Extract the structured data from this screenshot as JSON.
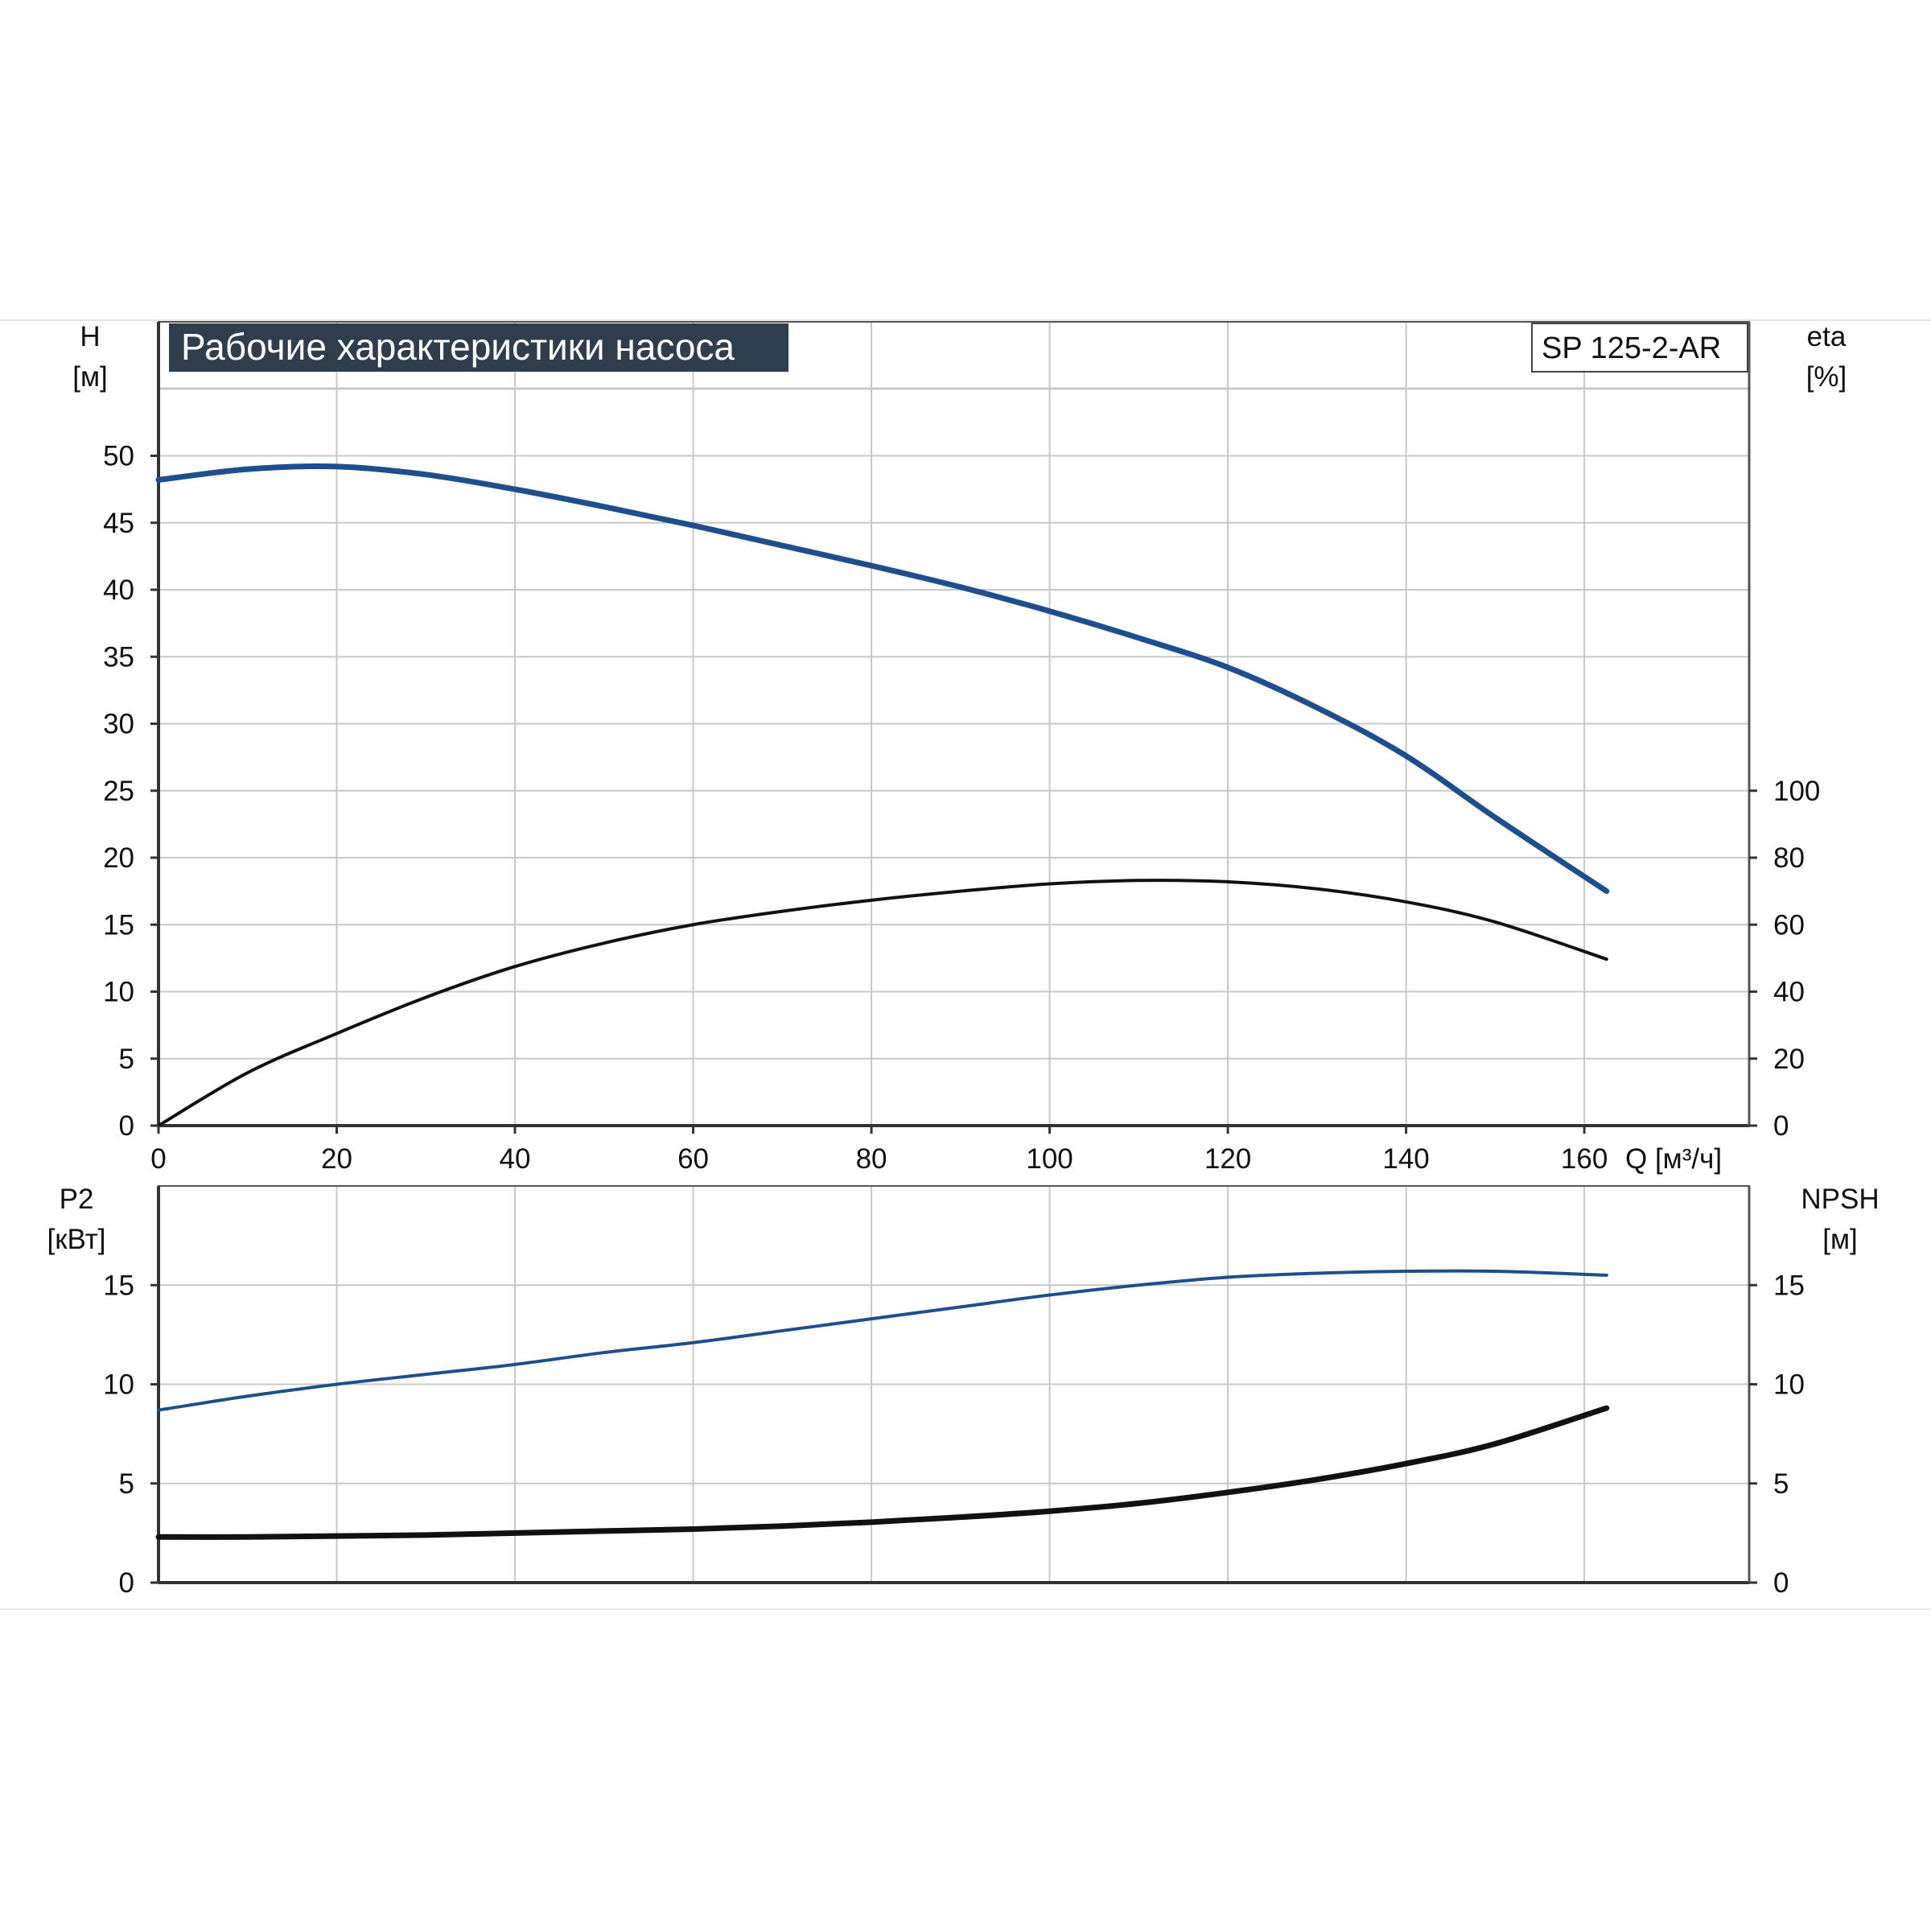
{
  "colors": {
    "blue": "#1f4e8c",
    "black": "#111111",
    "grid": "#c8c8c8",
    "title_bg": "#2f3e4e"
  },
  "chart_data": [
    {
      "type": "line",
      "title": "Рабочие характеристики насоса",
      "model_label": "SP 125-2-AR",
      "xlabel": "Q [м³/ч]",
      "ylabel_left": "H\n[м]",
      "ylabel_right": "eta\n[%]",
      "x_ticks": [
        "0",
        "20",
        "40",
        "60",
        "80",
        "100",
        "120",
        "140",
        "160"
      ],
      "y_left_ticks": [
        "0",
        "5",
        "10",
        "15",
        "20",
        "25",
        "30",
        "35",
        "40",
        "45",
        "50"
      ],
      "y_right_ticks": [
        "0",
        "20",
        "40",
        "60",
        "80",
        "100"
      ],
      "xlim": [
        0,
        178.5
      ],
      "ylim_left": [
        0,
        60
      ],
      "ylim_right": [
        0,
        240
      ],
      "grid": true,
      "series": [
        {
          "axis": "left",
          "color": "blue",
          "x": [
            0,
            10,
            20,
            30,
            40,
            50,
            60,
            70,
            80,
            90,
            100,
            110,
            120,
            130,
            140,
            150,
            162.5
          ],
          "y": [
            48.2,
            49.0,
            49.2,
            48.6,
            47.5,
            46.2,
            44.8,
            43.3,
            41.8,
            40.2,
            38.4,
            36.4,
            34.2,
            31.2,
            27.6,
            23.0,
            17.5
          ]
        },
        {
          "axis": "right",
          "color": "black",
          "x": [
            0,
            10,
            20,
            30,
            40,
            50,
            60,
            70,
            80,
            90,
            100,
            110,
            120,
            130,
            140,
            150,
            162.5
          ],
          "y": [
            0,
            15.8,
            27.5,
            38.3,
            47.5,
            54.5,
            60.0,
            64.0,
            67.3,
            70.0,
            72.2,
            73.2,
            72.8,
            70.7,
            66.8,
            60.8,
            49.7
          ]
        }
      ]
    },
    {
      "type": "line",
      "ylabel_left": "P2\n[кВт]",
      "ylabel_right": "NPSH\n[м]",
      "x_ticks": [],
      "y_left_ticks": [
        "0",
        "5",
        "10",
        "15"
      ],
      "y_right_ticks": [
        "0",
        "5",
        "10",
        "15"
      ],
      "xlim": [
        0,
        178.5
      ],
      "ylim_left": [
        0,
        20
      ],
      "ylim_right": [
        0,
        20
      ],
      "grid": true,
      "series": [
        {
          "axis": "left",
          "color": "blue",
          "x": [
            0,
            10,
            20,
            30,
            40,
            50,
            60,
            70,
            80,
            90,
            100,
            110,
            120,
            130,
            140,
            150,
            162.5
          ],
          "y": [
            8.7,
            9.4,
            10.0,
            10.5,
            11.0,
            11.6,
            12.1,
            12.7,
            13.3,
            13.9,
            14.5,
            15.0,
            15.4,
            15.6,
            15.7,
            15.7,
            15.5
          ]
        },
        {
          "axis": "right",
          "color": "black",
          "x": [
            0,
            10,
            20,
            30,
            40,
            50,
            60,
            70,
            80,
            90,
            100,
            110,
            120,
            130,
            140,
            150,
            162.5
          ],
          "y": [
            2.3,
            2.3,
            2.35,
            2.4,
            2.5,
            2.6,
            2.7,
            2.85,
            3.05,
            3.3,
            3.6,
            4.0,
            4.55,
            5.2,
            6.0,
            7.0,
            8.8
          ]
        }
      ]
    }
  ]
}
